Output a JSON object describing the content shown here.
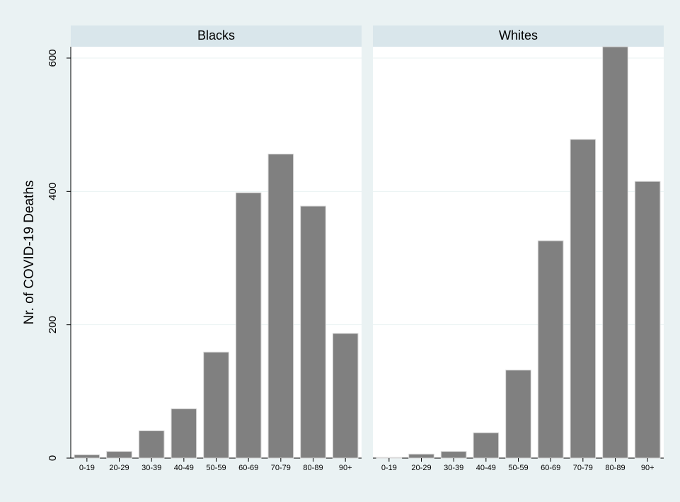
{
  "chart_data": [
    {
      "type": "bar",
      "title": "Blacks",
      "ylabel": "Nr. of COVID-19 Deaths",
      "categories": [
        "0-19",
        "20-29",
        "30-39",
        "40-49",
        "50-59",
        "60-69",
        "70-79",
        "80-89",
        "90+"
      ],
      "values": [
        5,
        10,
        41,
        74,
        159,
        398,
        456,
        378,
        187
      ],
      "color": "#808080",
      "ylim": [
        0,
        617
      ],
      "yticks": [
        0,
        200,
        400,
        600
      ],
      "grid": true
    },
    {
      "type": "bar",
      "title": "Whites",
      "categories": [
        "0-19",
        "20-29",
        "30-39",
        "40-49",
        "50-59",
        "60-69",
        "70-79",
        "80-89",
        "90+"
      ],
      "values": [
        1,
        6,
        10,
        38,
        132,
        326,
        478,
        617,
        415
      ],
      "color": "#808080",
      "ylim": [
        0,
        617
      ],
      "yticks": [
        0,
        200,
        400,
        600
      ],
      "grid": true
    }
  ]
}
